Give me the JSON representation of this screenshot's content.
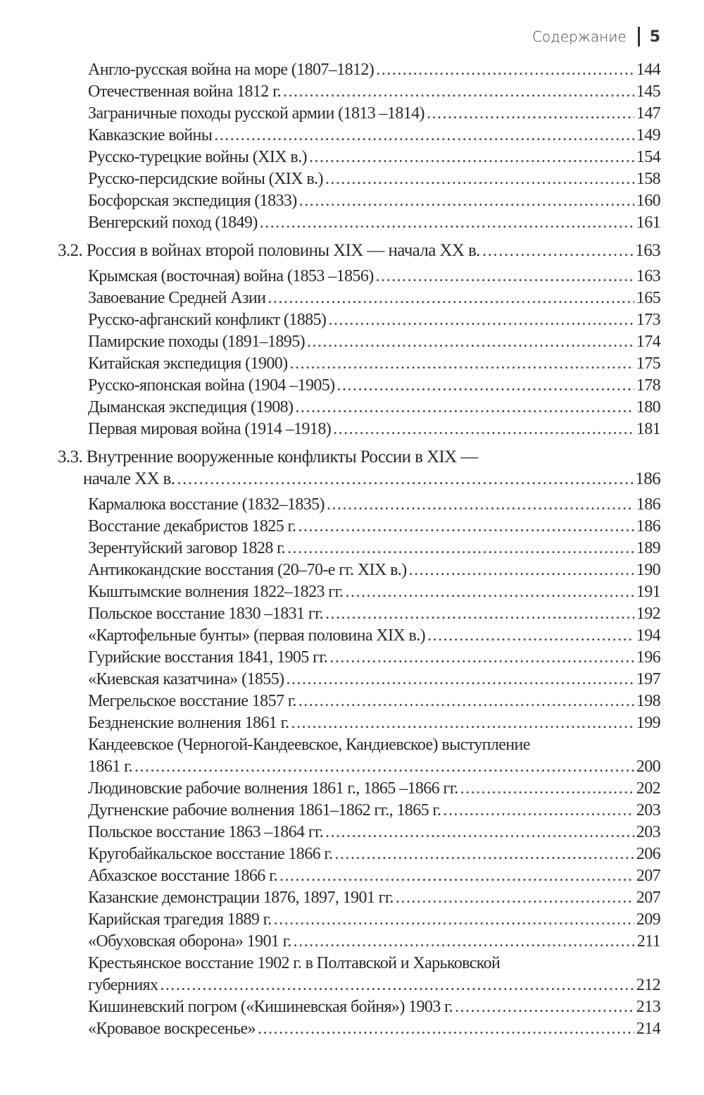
{
  "header": {
    "title": "Содержание",
    "page": "5"
  },
  "toc": [
    {
      "level": "sub",
      "lines": [
        "Англо-русская война на море (1807–1812)"
      ],
      "page": "144"
    },
    {
      "level": "sub",
      "lines": [
        "Отечественная война 1812 г."
      ],
      "page": "145"
    },
    {
      "level": "sub",
      "lines": [
        "Заграничные походы русской армии (1813 –1814)"
      ],
      "page": "147"
    },
    {
      "level": "sub",
      "lines": [
        "Кавказские войны"
      ],
      "page": "149"
    },
    {
      "level": "sub",
      "lines": [
        "Русско-турецкие войны (XIX в.)"
      ],
      "page": "154"
    },
    {
      "level": "sub",
      "lines": [
        "Русско-персидские войны (XIX в.)"
      ],
      "page": "158"
    },
    {
      "level": "sub",
      "lines": [
        "Босфорская экспедиция (1833)"
      ],
      "page": "160"
    },
    {
      "level": "sub",
      "lines": [
        "Венгерский поход (1849)"
      ],
      "page": "161"
    },
    {
      "level": "sec",
      "lines": [
        "3.2. Россия в войнах второй половины XIX — начала XX в."
      ],
      "page": "163"
    },
    {
      "level": "sub",
      "lines": [
        "Крымская (восточная) война (1853 –1856)"
      ],
      "page": "163"
    },
    {
      "level": "sub",
      "lines": [
        "Завоевание Средней Азии"
      ],
      "page": "165"
    },
    {
      "level": "sub",
      "lines": [
        "Русско-афганский конфликт (1885)"
      ],
      "page": "173"
    },
    {
      "level": "sub",
      "lines": [
        "Памирские походы (1891–1895)"
      ],
      "page": "174"
    },
    {
      "level": "sub",
      "lines": [
        "Китайская экспедиция (1900)"
      ],
      "page": "175"
    },
    {
      "level": "sub",
      "lines": [
        "Русско-японская война (1904 –1905)"
      ],
      "page": "178"
    },
    {
      "level": "sub",
      "lines": [
        "Дыманская экспедиция (1908)"
      ],
      "page": "180"
    },
    {
      "level": "sub",
      "lines": [
        "Первая мировая война (1914 –1918)"
      ],
      "page": "181"
    },
    {
      "level": "sec",
      "lines": [
        "3.3. Внутренние вооруженные конфликты России в XIX —",
        "начале XX в."
      ],
      "page": "186"
    },
    {
      "level": "sub",
      "lines": [
        "Кармалюка восстание (1832–1835)"
      ],
      "page": "186"
    },
    {
      "level": "sub",
      "lines": [
        "Восстание декабристов 1825 г."
      ],
      "page": "186"
    },
    {
      "level": "sub",
      "lines": [
        "Зерентуйский заговор 1828 г."
      ],
      "page": "189"
    },
    {
      "level": "sub",
      "lines": [
        "Антикокандские восстания (20–70-е гг. XIX в.)"
      ],
      "page": "190"
    },
    {
      "level": "sub",
      "lines": [
        "Кыштымские волнения 1822–1823 гг."
      ],
      "page": "191"
    },
    {
      "level": "sub",
      "lines": [
        "Польское восстание 1830 –1831 гг."
      ],
      "page": "192"
    },
    {
      "level": "sub",
      "lines": [
        "«Картофельные бунты» (первая половина XIX в.)"
      ],
      "page": "194"
    },
    {
      "level": "sub",
      "lines": [
        "Гурийские восстания 1841, 1905 гг."
      ],
      "page": "196"
    },
    {
      "level": "sub",
      "lines": [
        "«Киевская казатчина» (1855)"
      ],
      "page": "197"
    },
    {
      "level": "sub",
      "lines": [
        "Мегрельское восстание 1857 г."
      ],
      "page": "198"
    },
    {
      "level": "sub",
      "lines": [
        "Бездненские волнения 1861 г."
      ],
      "page": "199"
    },
    {
      "level": "sub",
      "lines": [
        "Кандеевское (Черногой-Кандеевское, Кандиевское) выступление",
        "1861 г."
      ],
      "page": "200"
    },
    {
      "level": "sub",
      "lines": [
        "Людиновские рабочие волнения 1861 г., 1865 –1866 гг."
      ],
      "page": "202"
    },
    {
      "level": "sub",
      "lines": [
        "Дугненские рабочие волнения 1861–1862 гг., 1865 г."
      ],
      "page": "203"
    },
    {
      "level": "sub",
      "lines": [
        "Польское восстание 1863 –1864 гг."
      ],
      "page": "203"
    },
    {
      "level": "sub",
      "lines": [
        "Кругобайкальское восстание 1866 г."
      ],
      "page": "206"
    },
    {
      "level": "sub",
      "lines": [
        "Абхазское восстание 1866 г."
      ],
      "page": "207"
    },
    {
      "level": "sub",
      "lines": [
        "Казанские демонстрации 1876, 1897, 1901 гг."
      ],
      "page": "207"
    },
    {
      "level": "sub",
      "lines": [
        "Карийская трагедия 1889 г."
      ],
      "page": "209"
    },
    {
      "level": "sub",
      "lines": [
        "«Обуховская оборона» 1901 г."
      ],
      "page": "211"
    },
    {
      "level": "sub",
      "lines": [
        "Крестьянское восстание 1902 г. в Полтавской и Харьковской",
        "губерниях"
      ],
      "page": "212"
    },
    {
      "level": "sub",
      "lines": [
        "Кишиневский погром («Кишиневская бойня») 1903 г."
      ],
      "page": "213"
    },
    {
      "level": "sub",
      "lines": [
        "«Кровавое воскресенье»"
      ],
      "page": "214"
    }
  ]
}
